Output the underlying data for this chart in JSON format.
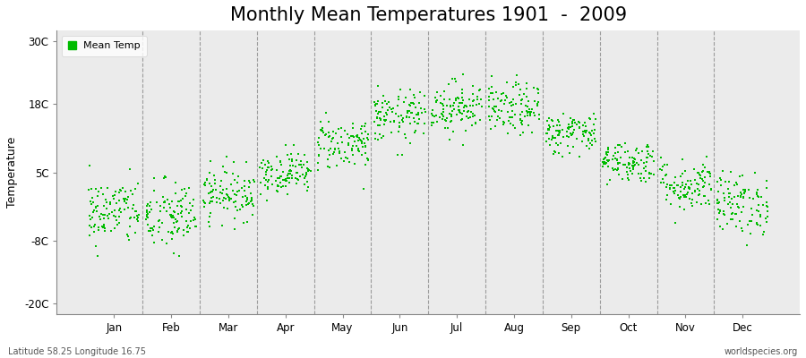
{
  "title": "Monthly Mean Temperatures 1901  -  2009",
  "ylabel": "Temperature",
  "xlabel_months": [
    "Jan",
    "Feb",
    "Mar",
    "Apr",
    "May",
    "Jun",
    "Jul",
    "Aug",
    "Sep",
    "Oct",
    "Nov",
    "Dec"
  ],
  "yticks": [
    -20,
    -8,
    5,
    18,
    30
  ],
  "ytick_labels": [
    "-20C",
    "-8C",
    "5C",
    "18C",
    "30C"
  ],
  "ylim": [
    -22,
    32
  ],
  "dot_color": "#00BB00",
  "dot_size": 3,
  "legend_label": "Mean Temp",
  "bottom_left_text": "Latitude 58.25 Longitude 16.75",
  "bottom_right_text": "worldspecies.org",
  "background_color": "#EBEBEB",
  "figure_background": "#FFFFFF",
  "title_fontsize": 15,
  "n_years": 109,
  "monthly_means": [
    -2.5,
    -3.5,
    1.0,
    5.0,
    10.5,
    15.5,
    17.5,
    17.0,
    12.5,
    7.0,
    2.5,
    -1.0
  ],
  "monthly_stds": [
    3.2,
    3.5,
    2.5,
    2.0,
    2.5,
    2.5,
    2.5,
    2.5,
    2.0,
    2.0,
    2.5,
    3.0
  ],
  "xlim_left": 0.0,
  "xlim_right": 13.0
}
